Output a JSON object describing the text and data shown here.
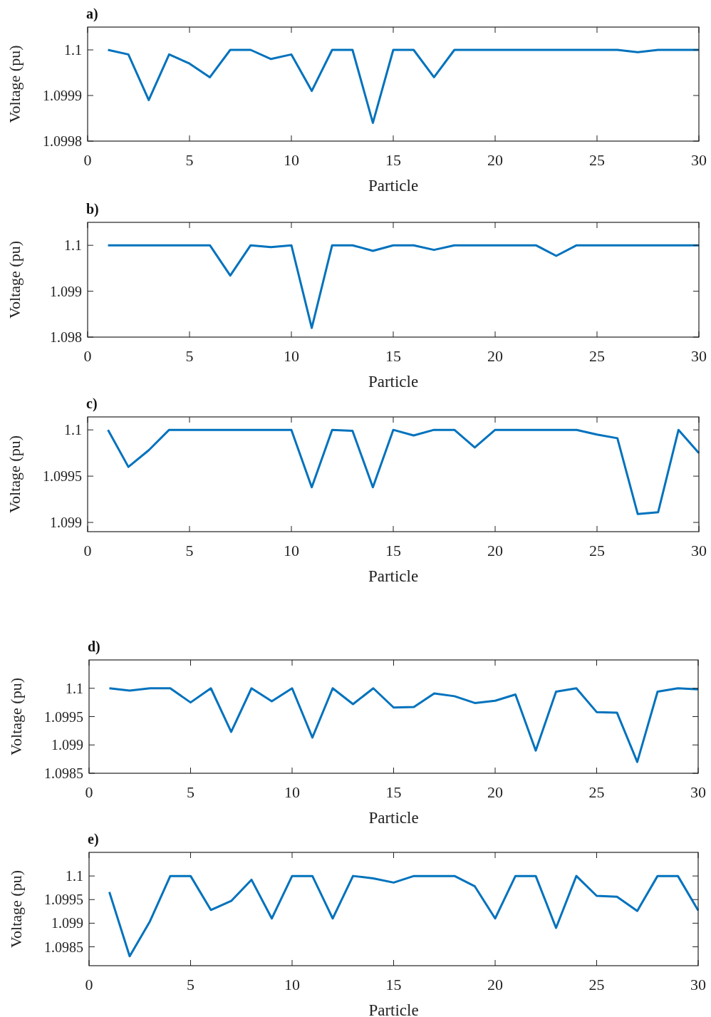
{
  "chart_data": [
    {
      "type": "line",
      "title": "a)",
      "xlabel": "Particle",
      "ylabel": "Voltage (pu)",
      "x": [
        1,
        2,
        3,
        4,
        5,
        6,
        7,
        8,
        9,
        10,
        11,
        12,
        13,
        14,
        15,
        16,
        17,
        18,
        19,
        20,
        21,
        22,
        23,
        24,
        25,
        26,
        27,
        28,
        29,
        30
      ],
      "series": [
        {
          "color": "#0072bd",
          "values": [
            1.1,
            1.09999,
            1.09989,
            1.09999,
            1.09997,
            1.09994,
            1.1,
            1.1,
            1.09998,
            1.09999,
            1.09991,
            1.1,
            1.1,
            1.09984,
            1.1,
            1.1,
            1.09994,
            1.1,
            1.1,
            1.1,
            1.1,
            1.1,
            1.1,
            1.1,
            1.1,
            1.1,
            1.099995,
            1.1,
            1.1,
            1.1
          ]
        }
      ],
      "xlim": [
        0,
        30
      ],
      "xticks": [
        0,
        5,
        10,
        15,
        20,
        25,
        30
      ],
      "ylim": [
        1.0998,
        1.10005
      ],
      "yticks": [
        1.0998,
        1.0999,
        1.1
      ],
      "grid": false
    },
    {
      "type": "line",
      "title": "b)",
      "xlabel": "Particle",
      "ylabel": "Voltage (pu)",
      "x": [
        1,
        2,
        3,
        4,
        5,
        6,
        7,
        8,
        9,
        10,
        11,
        12,
        13,
        14,
        15,
        16,
        17,
        18,
        19,
        20,
        21,
        22,
        23,
        24,
        25,
        26,
        27,
        28,
        29,
        30
      ],
      "series": [
        {
          "color": "#0072bd",
          "values": [
            1.1,
            1.1,
            1.1,
            1.1,
            1.1,
            1.1,
            1.09934,
            1.1,
            1.09996,
            1.1,
            1.0982,
            1.1,
            1.1,
            1.09988,
            1.1,
            1.1,
            1.0999,
            1.1,
            1.1,
            1.1,
            1.1,
            1.1,
            1.09977,
            1.1,
            1.1,
            1.1,
            1.1,
            1.1,
            1.1,
            1.1
          ]
        }
      ],
      "xlim": [
        0,
        30
      ],
      "xticks": [
        0,
        5,
        10,
        15,
        20,
        25,
        30
      ],
      "ylim": [
        1.098,
        1.1005
      ],
      "yticks": [
        1.098,
        1.099,
        1.1
      ],
      "grid": false
    },
    {
      "type": "line",
      "title": "c)",
      "xlabel": "Particle",
      "ylabel": "Voltage (pu)",
      "x": [
        1,
        2,
        3,
        4,
        5,
        6,
        7,
        8,
        9,
        10,
        11,
        12,
        13,
        14,
        15,
        16,
        17,
        18,
        19,
        20,
        21,
        22,
        23,
        24,
        25,
        26,
        27,
        28,
        29,
        30
      ],
      "series": [
        {
          "color": "#0072bd",
          "values": [
            1.1,
            1.0996,
            1.09978,
            1.1,
            1.1,
            1.1,
            1.1,
            1.1,
            1.1,
            1.1,
            1.09938,
            1.1,
            1.09999,
            1.09938,
            1.1,
            1.09994,
            1.1,
            1.1,
            1.09981,
            1.1,
            1.1,
            1.1,
            1.1,
            1.1,
            1.09995,
            1.09991,
            1.09909,
            1.09911,
            1.1,
            1.09975
          ]
        }
      ],
      "xlim": [
        0,
        30
      ],
      "xticks": [
        0,
        5,
        10,
        15,
        20,
        25,
        30
      ],
      "ylim": [
        1.0989,
        1.10014
      ],
      "yticks": [
        1.099,
        1.0995,
        1.1
      ],
      "grid": false
    },
    {
      "type": "line",
      "title": "d)",
      "xlabel": "Particle",
      "ylabel": "Voltage (pu)",
      "x": [
        1,
        2,
        3,
        4,
        5,
        6,
        7,
        8,
        9,
        10,
        11,
        12,
        13,
        14,
        15,
        16,
        17,
        18,
        19,
        20,
        21,
        22,
        23,
        24,
        25,
        26,
        27,
        28,
        29,
        30
      ],
      "series": [
        {
          "color": "#0072bd",
          "values": [
            1.1,
            1.09996,
            1.1,
            1.1,
            1.09975,
            1.1,
            1.09923,
            1.1,
            1.09977,
            1.1,
            1.09913,
            1.1,
            1.09972,
            1.1,
            1.09966,
            1.09967,
            1.09991,
            1.09986,
            1.09974,
            1.09978,
            1.09989,
            1.0989,
            1.09994,
            1.1,
            1.09958,
            1.09957,
            1.0987,
            1.09994,
            1.1,
            1.09998
          ]
        }
      ],
      "xlim": [
        0,
        30
      ],
      "xticks": [
        0,
        5,
        10,
        15,
        20,
        25,
        30
      ],
      "ylim": [
        1.0985,
        1.1005
      ],
      "yticks": [
        1.0985,
        1.099,
        1.0995,
        1.1
      ],
      "grid": false
    },
    {
      "type": "line",
      "title": "e)",
      "xlabel": "Particle",
      "ylabel": "Voltage (pu)",
      "x": [
        1,
        2,
        3,
        4,
        5,
        6,
        7,
        8,
        9,
        10,
        11,
        12,
        13,
        14,
        15,
        16,
        17,
        18,
        19,
        20,
        21,
        22,
        23,
        24,
        25,
        26,
        27,
        28,
        29,
        30
      ],
      "series": [
        {
          "color": "#0072bd",
          "values": [
            1.09966,
            1.0983,
            1.09904,
            1.1,
            1.1,
            1.09928,
            1.09947,
            1.09992,
            1.0991,
            1.1,
            1.1,
            1.0991,
            1.1,
            1.09995,
            1.09986,
            1.1,
            1.1,
            1.1,
            1.09978,
            1.0991,
            1.1,
            1.1,
            1.0989,
            1.1,
            1.09958,
            1.09956,
            1.09926,
            1.1,
            1.1,
            1.09927
          ]
        }
      ],
      "xlim": [
        0,
        30
      ],
      "xticks": [
        0,
        5,
        10,
        15,
        20,
        25,
        30
      ],
      "ylim": [
        1.0981,
        1.1005
      ],
      "yticks": [
        1.0985,
        1.099,
        1.0995,
        1.1
      ],
      "grid": false
    }
  ]
}
